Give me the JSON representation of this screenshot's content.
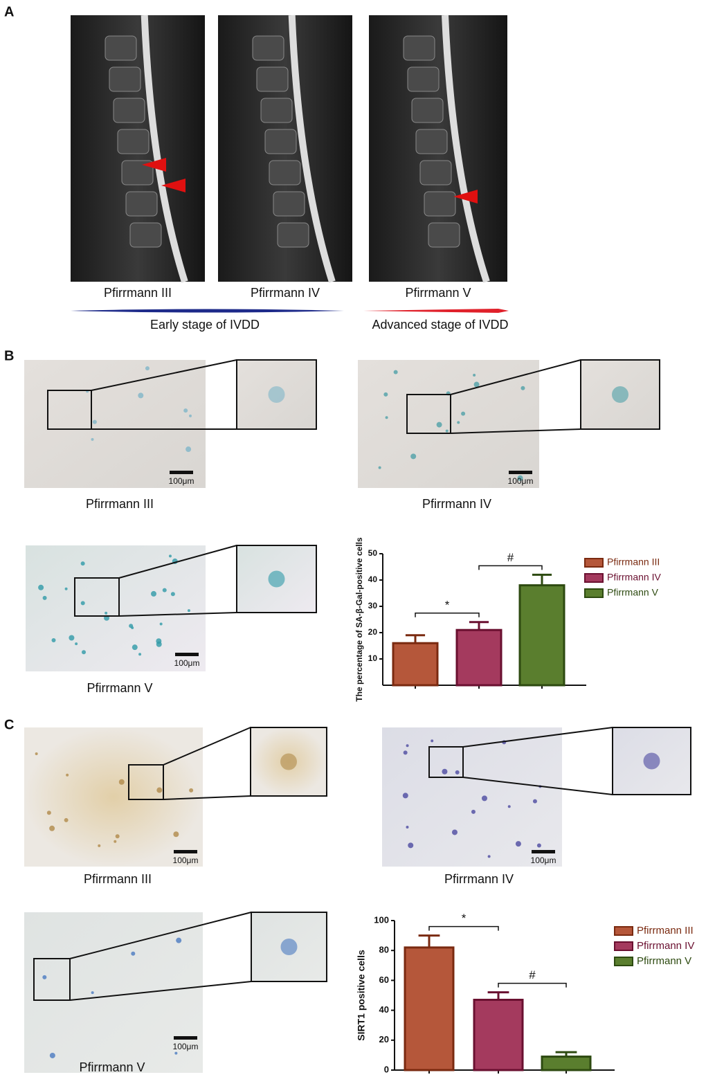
{
  "panel_labels": [
    "A",
    "B",
    "C"
  ],
  "panel_a": {
    "images": [
      {
        "caption": "Pfirrmann III"
      },
      {
        "caption": "Pfirrmann IV"
      },
      {
        "caption": "Pfirrmann V"
      }
    ],
    "stages": [
      "Early stage of IVDD",
      "Advanced stage of IVDD"
    ]
  },
  "panel_b": {
    "images": [
      {
        "caption": "Pfirrmann III",
        "scale_bar": "100μm"
      },
      {
        "caption": "Pfirrmann IV",
        "scale_bar": "100μm"
      },
      {
        "caption": "Pfirrmann V",
        "scale_bar": "100μm"
      }
    ]
  },
  "panel_c": {
    "images": [
      {
        "caption": "Pfirrmann III",
        "scale_bar": "100μm"
      },
      {
        "caption": "Pfirrmann IV",
        "scale_bar": "100μm"
      },
      {
        "caption": "Pfirrmann V",
        "scale_bar": "100μm"
      }
    ]
  },
  "chart_data": [
    {
      "type": "bar",
      "y_label": "The percentage of SA-β-Gal-positive cells",
      "categories": [
        null,
        null,
        null
      ],
      "values": [
        16,
        21,
        38
      ],
      "errors": [
        3,
        3,
        4
      ],
      "colors": [
        "#b5573a",
        "#a43a5e",
        "#5a7e2e"
      ],
      "legend": [
        "Pfirrmann III",
        "Pfirrmann IV",
        "Pfirrmann V"
      ],
      "annotations": [
        "*",
        "#"
      ],
      "ylim": [
        0,
        50
      ],
      "yticks": [
        10,
        20,
        30,
        40,
        50
      ]
    },
    {
      "type": "bar",
      "y_label": "SIRT1 positive cells",
      "categories": [
        null,
        null,
        null
      ],
      "values": [
        82,
        47,
        9
      ],
      "errors": [
        8,
        5,
        3
      ],
      "colors": [
        "#b5573a",
        "#a43a5e",
        "#5a7e2e"
      ],
      "legend": [
        "Pfirrmann III",
        "Pfirrmann IV",
        "Pfirrmann V"
      ],
      "annotations": [
        "*",
        "#"
      ],
      "ylim": [
        0,
        100
      ],
      "yticks": [
        0,
        20,
        40,
        60,
        80,
        100
      ]
    }
  ]
}
